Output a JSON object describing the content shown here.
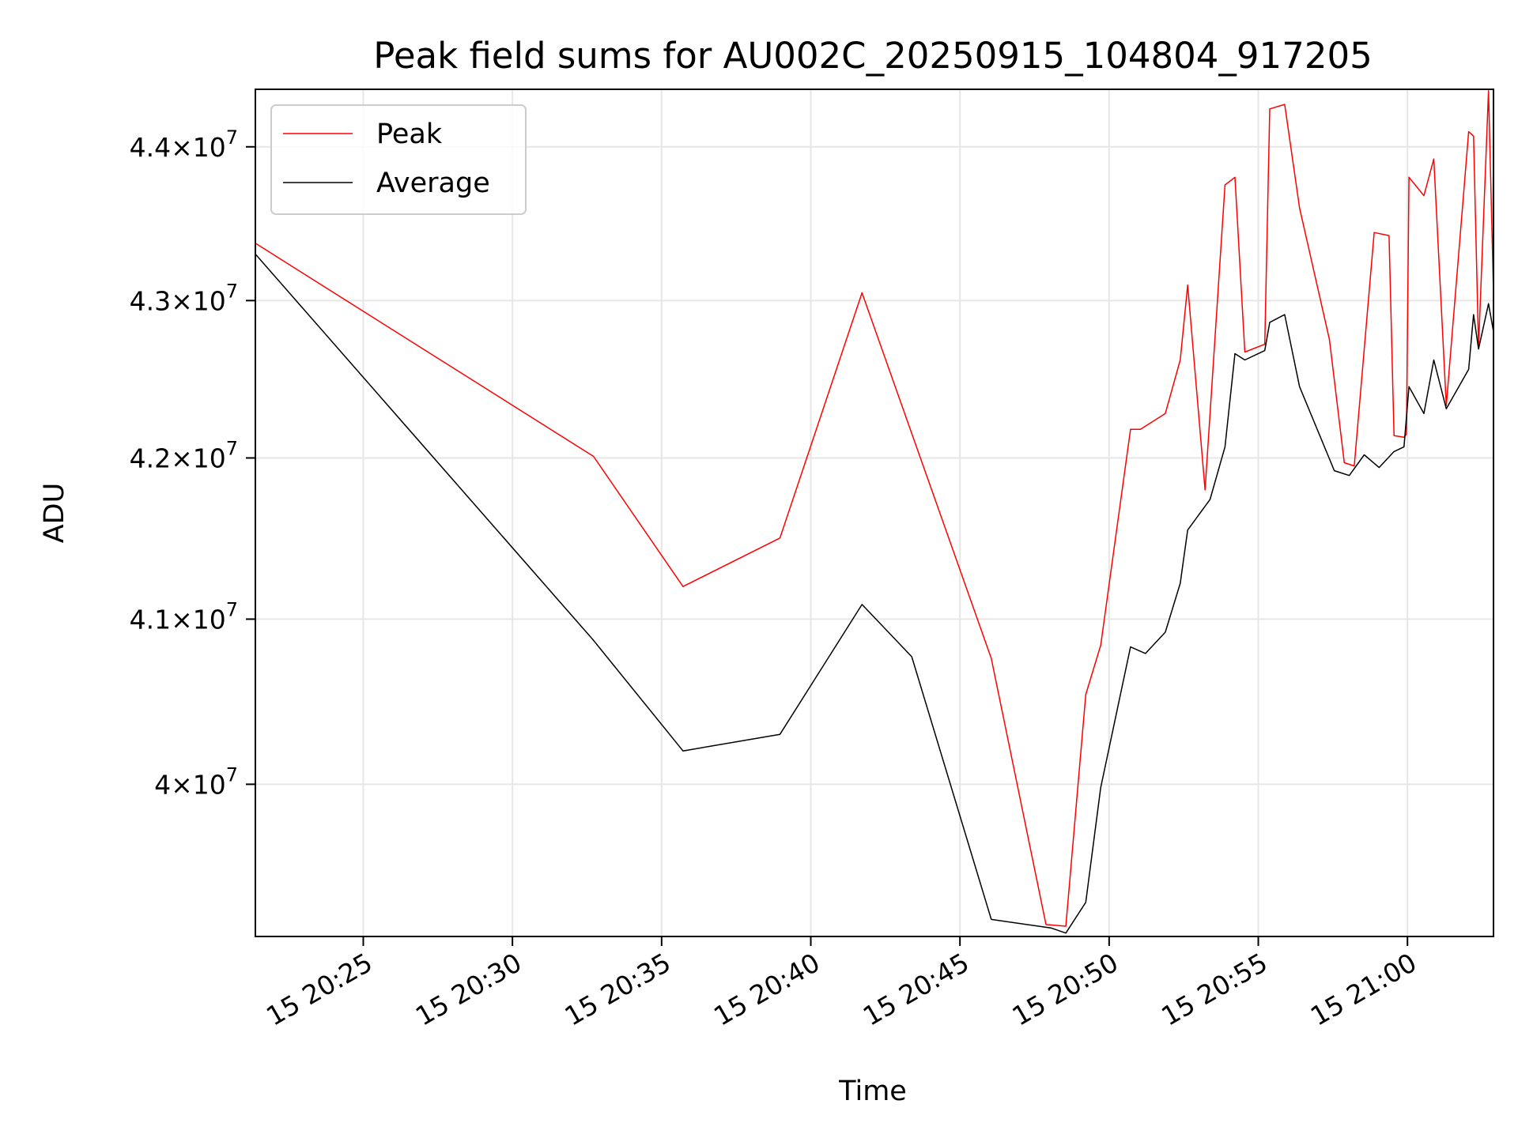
{
  "chart_data": {
    "type": "line",
    "title": "Peak field sums for AU002C_20250915_104804_917205",
    "xlabel": "Time",
    "ylabel": "ADU",
    "y_scale": "log",
    "x_unit": "time of day (HH:MM)",
    "x_tick_labels": [
      "15 20:25",
      "15 20:30",
      "15 20:35",
      "15 20:40",
      "15 20:45",
      "15 20:50",
      "15 20:55",
      "15 21:00"
    ],
    "x_ticks": [
      "20:25",
      "20:30",
      "20:35",
      "20:40",
      "20:45",
      "20:50",
      "20:55",
      "21:00"
    ],
    "y_tick_labels": [
      {
        "mant": "4",
        "exp": "7"
      },
      {
        "mant": "4.1",
        "exp": "7"
      },
      {
        "mant": "4.2",
        "exp": "7"
      },
      {
        "mant": "4.3",
        "exp": "7"
      },
      {
        "mant": "4.4",
        "exp": "7"
      }
    ],
    "y_ticks": [
      40000000,
      41000000,
      42000000,
      43000000,
      44000000
    ],
    "xlim": [
      "20:21:23",
      "21:02:53"
    ],
    "ylim": [
      39100000,
      44380000
    ],
    "grid": true,
    "legend_position": "top-left",
    "series": [
      {
        "name": "Peak",
        "color": "#ff0000",
        "points": [
          [
            "20:21:23",
            43370000
          ],
          [
            "20:32:43",
            42010000
          ],
          [
            "20:35:43",
            41200000
          ],
          [
            "20:38:58",
            41500000
          ],
          [
            "20:41:43",
            43050000
          ],
          [
            "20:46:03",
            40760000
          ],
          [
            "20:47:53",
            39170000
          ],
          [
            "20:48:33",
            39160000
          ],
          [
            "20:49:13",
            40540000
          ],
          [
            "20:49:43",
            40840000
          ],
          [
            "20:50:43",
            42180000
          ],
          [
            "20:51:03",
            42180000
          ],
          [
            "20:51:53",
            42280000
          ],
          [
            "20:52:23",
            42620000
          ],
          [
            "20:52:38",
            43100000
          ],
          [
            "20:53:13",
            41800000
          ],
          [
            "20:53:53",
            43750000
          ],
          [
            "20:54:13",
            43800000
          ],
          [
            "20:54:33",
            42670000
          ],
          [
            "20:55:13",
            42720000
          ],
          [
            "20:55:23",
            44250000
          ],
          [
            "20:55:53",
            44280000
          ],
          [
            "20:56:23",
            43600000
          ],
          [
            "20:57:23",
            42750000
          ],
          [
            "20:57:53",
            41970000
          ],
          [
            "20:58:13",
            41950000
          ],
          [
            "20:58:53",
            43440000
          ],
          [
            "20:59:23",
            43420000
          ],
          [
            "20:59:33",
            42140000
          ],
          [
            "20:59:53",
            42130000
          ],
          [
            "20:59:58",
            42150000
          ],
          [
            "21:00:03",
            43800000
          ],
          [
            "21:00:33",
            43680000
          ],
          [
            "21:00:53",
            43920000
          ],
          [
            "21:01:18",
            42330000
          ],
          [
            "21:02:03",
            44100000
          ],
          [
            "21:02:13",
            44070000
          ],
          [
            "21:02:23",
            42700000
          ],
          [
            "21:02:43",
            44370000
          ],
          [
            "21:02:53",
            43050000
          ]
        ]
      },
      {
        "name": "Average",
        "color": "#000000",
        "points": [
          [
            "20:21:23",
            43300000
          ],
          [
            "20:32:43",
            40870000
          ],
          [
            "20:35:43",
            40200000
          ],
          [
            "20:38:58",
            40300000
          ],
          [
            "20:41:43",
            41090000
          ],
          [
            "20:43:23",
            40770000
          ],
          [
            "20:46:03",
            39200000
          ],
          [
            "20:48:03",
            39150000
          ],
          [
            "20:48:33",
            39120000
          ],
          [
            "20:49:13",
            39300000
          ],
          [
            "20:49:43",
            39980000
          ],
          [
            "20:50:43",
            40830000
          ],
          [
            "20:51:13",
            40790000
          ],
          [
            "20:51:53",
            40920000
          ],
          [
            "20:52:23",
            41220000
          ],
          [
            "20:52:38",
            41550000
          ],
          [
            "20:53:23",
            41740000
          ],
          [
            "20:53:53",
            42070000
          ],
          [
            "20:54:13",
            42660000
          ],
          [
            "20:54:33",
            42620000
          ],
          [
            "20:55:13",
            42680000
          ],
          [
            "20:55:23",
            42860000
          ],
          [
            "20:55:53",
            42910000
          ],
          [
            "20:56:23",
            42450000
          ],
          [
            "20:57:33",
            41920000
          ],
          [
            "20:58:03",
            41890000
          ],
          [
            "20:58:33",
            42020000
          ],
          [
            "20:59:03",
            41940000
          ],
          [
            "20:59:33",
            42040000
          ],
          [
            "20:59:53",
            42070000
          ],
          [
            "21:00:03",
            42450000
          ],
          [
            "21:00:33",
            42280000
          ],
          [
            "21:00:53",
            42620000
          ],
          [
            "21:01:18",
            42310000
          ],
          [
            "21:02:03",
            42560000
          ],
          [
            "21:02:13",
            42910000
          ],
          [
            "21:02:23",
            42690000
          ],
          [
            "21:02:43",
            42980000
          ],
          [
            "21:02:53",
            42800000
          ]
        ]
      }
    ]
  }
}
